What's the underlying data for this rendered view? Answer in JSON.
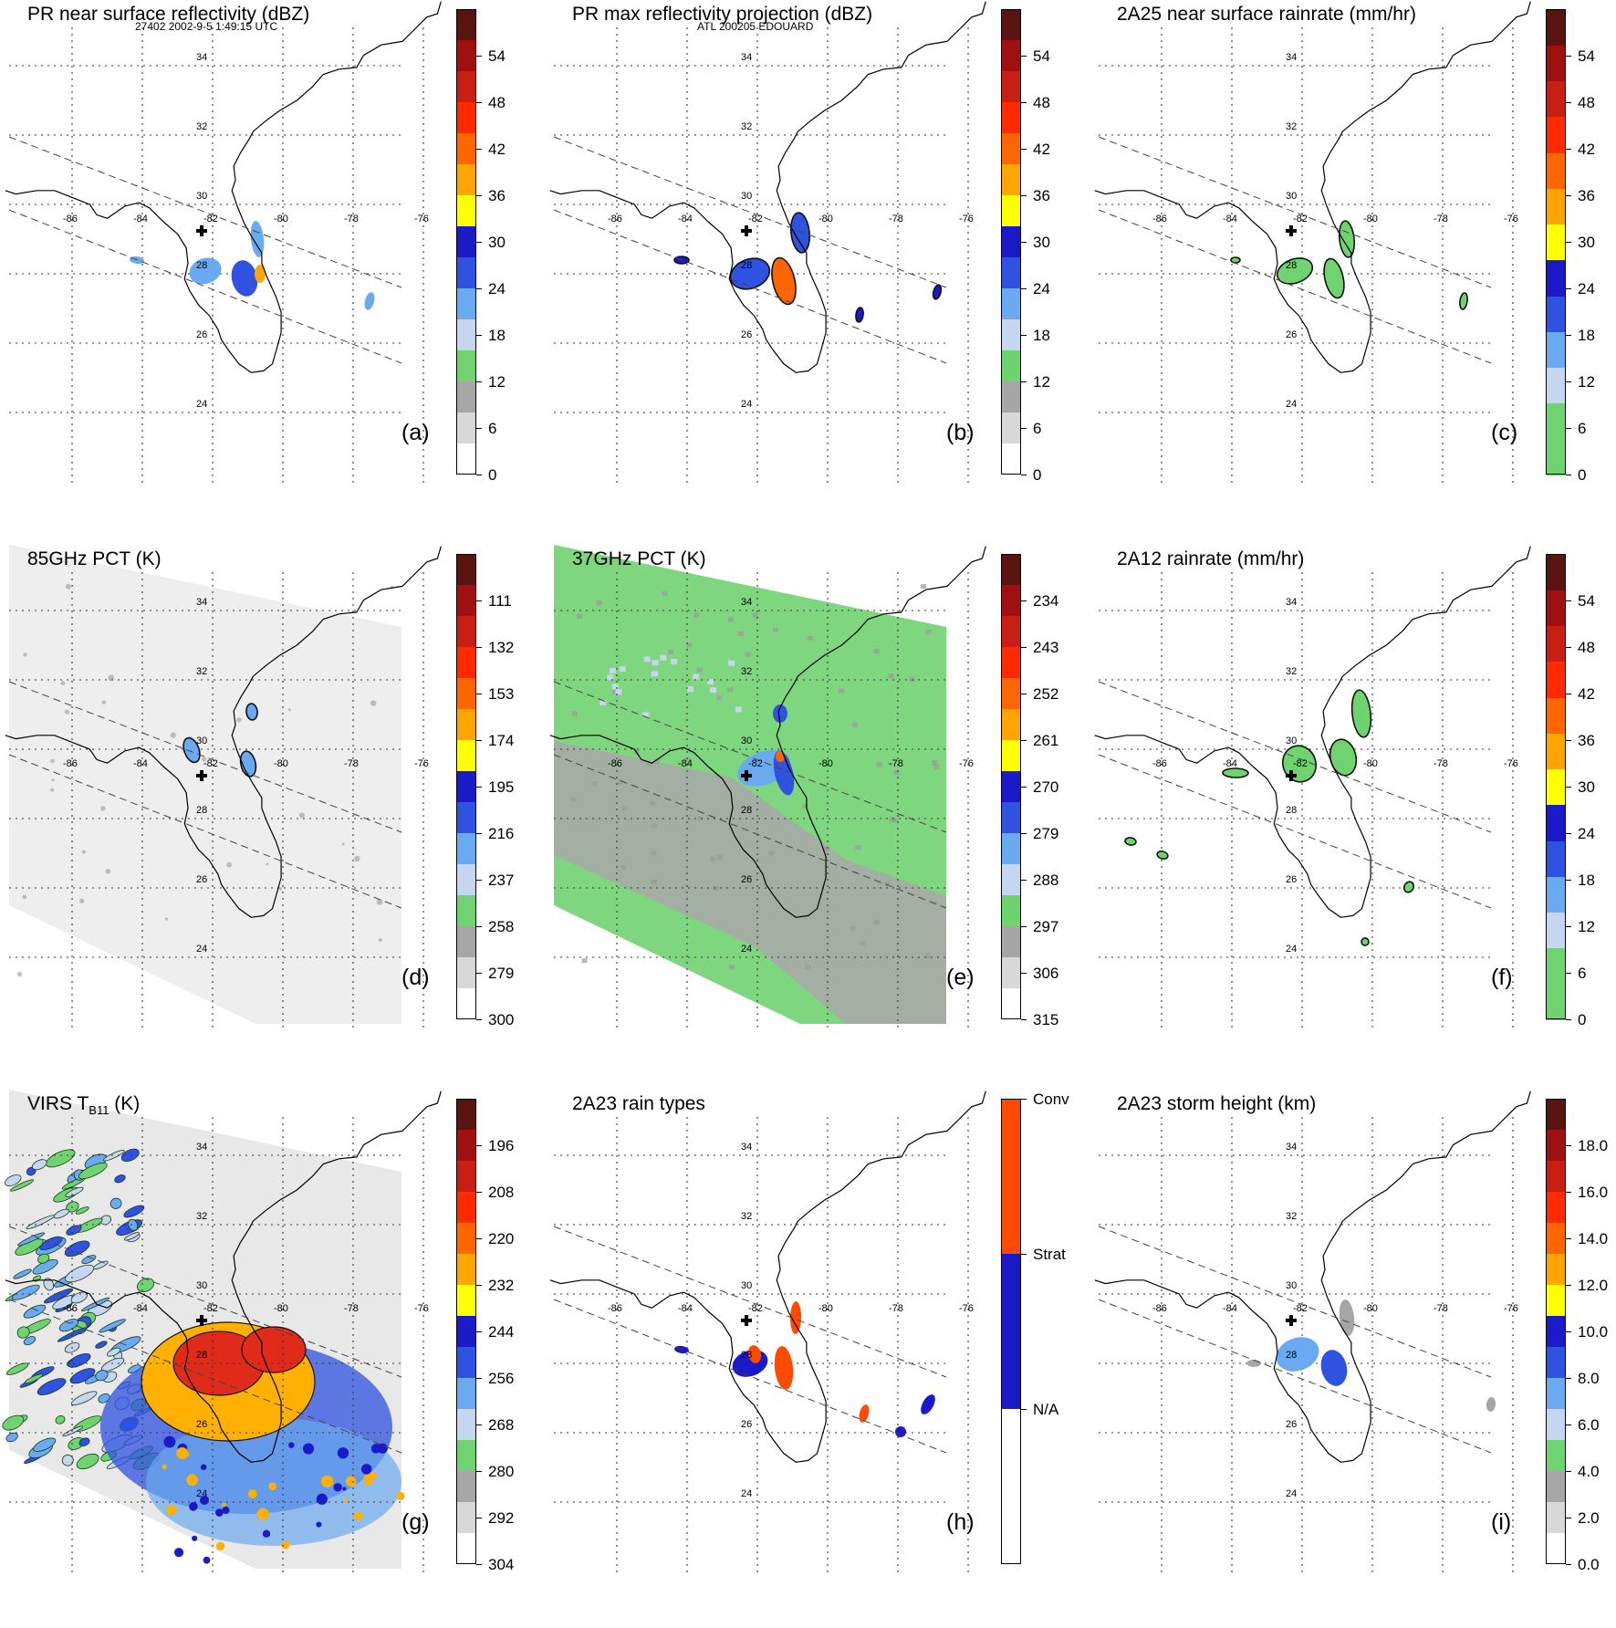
{
  "header": {
    "left": "27402 2002-9-5 1:49:15 UTC",
    "center": "ATL 200205 EDOUARD"
  },
  "map": {
    "lat_labels": [
      "34",
      "32",
      "30",
      "28",
      "26",
      "24"
    ],
    "lon_labels": [
      "-86",
      "-84",
      "-82",
      "-80",
      "-78",
      "-76"
    ]
  },
  "panels": [
    {
      "id": "a",
      "title": "PR near surface reflectivity (dBZ)",
      "label": "(a)",
      "background": "none",
      "colorbar": {
        "colors": [
          "#ffffff",
          "#d8d8d8",
          "#a6a6a6",
          "#6fd46f",
          "#c6d6f0",
          "#6aaaf0",
          "#2f52e0",
          "#1a1ac8",
          "#ffff00",
          "#ffa500",
          "#ff6600",
          "#ff2a00",
          "#c81e14",
          "#a01010",
          "#5a1410"
        ],
        "ticks": [
          "0",
          "6",
          "12",
          "18",
          "24",
          "30",
          "36",
          "42",
          "48",
          "54"
        ]
      }
    },
    {
      "id": "b",
      "title": "PR max reflectivity projection (dBZ)",
      "label": "(b)",
      "background": "none",
      "colorbar": {
        "colors": [
          "#ffffff",
          "#d8d8d8",
          "#a6a6a6",
          "#6fd46f",
          "#c6d6f0",
          "#6aaaf0",
          "#2f52e0",
          "#1a1ac8",
          "#ffff00",
          "#ffa500",
          "#ff6600",
          "#ff2a00",
          "#c81e14",
          "#a01010",
          "#5a1410"
        ],
        "ticks": [
          "0",
          "6",
          "12",
          "18",
          "24",
          "30",
          "36",
          "42",
          "48",
          "54"
        ]
      }
    },
    {
      "id": "c",
      "title": "2A25 near surface rainrate (mm/hr)",
      "label": "(c)",
      "background": "none",
      "colorbar": {
        "colors": [
          "#6fd46f",
          "#6fd46f",
          "#c6d6f0",
          "#6aaaf0",
          "#2f52e0",
          "#1a1ac8",
          "#ffff00",
          "#ffa500",
          "#ff6600",
          "#ff2a00",
          "#c81e14",
          "#a01010",
          "#5a1410"
        ],
        "ticks": [
          "0",
          "6",
          "12",
          "18",
          "24",
          "30",
          "36",
          "42",
          "48",
          "54"
        ]
      }
    },
    {
      "id": "d",
      "title": "85GHz PCT (K)",
      "label": "(d)",
      "background": "gray",
      "colorbar": {
        "colors": [
          "#ffffff",
          "#d8d8d8",
          "#a6a6a6",
          "#6fd46f",
          "#c6d6f0",
          "#6aaaf0",
          "#2f52e0",
          "#1a1ac8",
          "#ffff00",
          "#ffa500",
          "#ff6600",
          "#ff2a00",
          "#c81e14",
          "#a01010",
          "#5a1410"
        ],
        "ticks": [
          "300",
          "279",
          "258",
          "237",
          "216",
          "195",
          "174",
          "153",
          "132",
          "111"
        ]
      }
    },
    {
      "id": "e",
      "title": "37GHz PCT (K)",
      "label": "(e)",
      "background": "green",
      "colorbar": {
        "colors": [
          "#ffffff",
          "#d8d8d8",
          "#a6a6a6",
          "#6fd46f",
          "#c6d6f0",
          "#6aaaf0",
          "#2f52e0",
          "#1a1ac8",
          "#ffff00",
          "#ffa500",
          "#ff6600",
          "#ff2a00",
          "#c81e14",
          "#a01010",
          "#5a1410"
        ],
        "ticks": [
          "315",
          "306",
          "297",
          "288",
          "279",
          "270",
          "261",
          "252",
          "243",
          "234"
        ]
      }
    },
    {
      "id": "f",
      "title": "2A12 rainrate (mm/hr)",
      "label": "(f)",
      "background": "none",
      "colorbar": {
        "colors": [
          "#6fd46f",
          "#6fd46f",
          "#c6d6f0",
          "#6aaaf0",
          "#2f52e0",
          "#1a1ac8",
          "#ffff00",
          "#ffa500",
          "#ff6600",
          "#ff2a00",
          "#c81e14",
          "#a01010",
          "#5a1410"
        ],
        "ticks": [
          "0",
          "6",
          "12",
          "18",
          "24",
          "30",
          "36",
          "42",
          "48",
          "54"
        ]
      }
    },
    {
      "id": "g",
      "title": "VIRS T",
      "title_sub": "B11",
      "title_suffix": " (K)",
      "label": "(g)",
      "background": "virs",
      "colorbar": {
        "colors": [
          "#ffffff",
          "#d8d8d8",
          "#a6a6a6",
          "#6fd46f",
          "#c6d6f0",
          "#6aaaf0",
          "#2f52e0",
          "#1a1ac8",
          "#ffff00",
          "#ffa500",
          "#ff6600",
          "#ff2a00",
          "#c81e14",
          "#a01010",
          "#5a1410"
        ],
        "ticks": [
          "304",
          "292",
          "280",
          "268",
          "256",
          "244",
          "232",
          "220",
          "208",
          "196"
        ]
      }
    },
    {
      "id": "h",
      "title": "2A23 rain types",
      "label": "(h)",
      "background": "none",
      "colorbar": {
        "type": "categorical",
        "colors": [
          "#ffffff",
          "#1a1ac8",
          "#ff4a00"
        ],
        "ticks": [
          "N/A",
          "Strat",
          "Conv"
        ]
      }
    },
    {
      "id": "i",
      "title": "2A23 storm height (km)",
      "label": "(i)",
      "background": "none",
      "colorbar": {
        "colors": [
          "#ffffff",
          "#d8d8d8",
          "#a6a6a6",
          "#6fd46f",
          "#c6d6f0",
          "#6aaaf0",
          "#2f52e0",
          "#1a1ac8",
          "#ffff00",
          "#ffa500",
          "#ff6600",
          "#ff2a00",
          "#c81e14",
          "#a01010",
          "#5a1410"
        ],
        "ticks": [
          "0.0",
          "2.0",
          "4.0",
          "6.0",
          "8.0",
          "10.0",
          "12.0",
          "14.0",
          "16.0",
          "18.0"
        ]
      }
    }
  ]
}
